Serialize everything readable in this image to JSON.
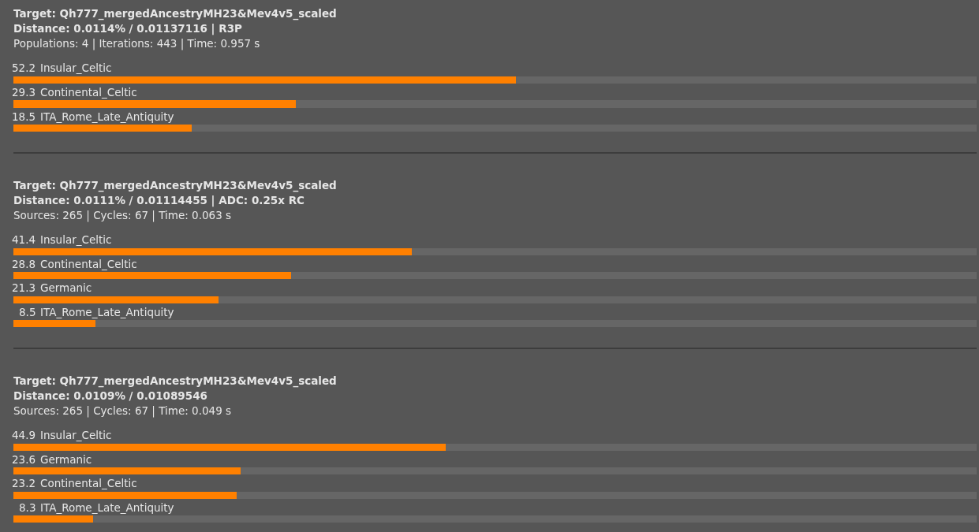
{
  "chart_data": [
    {
      "type": "bar",
      "orientation": "horizontal",
      "stacked": true,
      "title": "Target: Qh777_mergedAncestryMH23&Mev4v5_scaled",
      "subtitle": "Distance: 0.0114% / 0.01137116 | R3P",
      "annotations": [
        "Populations: 4 | Iterations: 443 | Time: 0.957 s"
      ],
      "categories": [
        "Insular_Celtic",
        "Continental_Celtic",
        "ITA_Rome_Late_Antiquity"
      ],
      "series": [
        {
          "color": "#ff8000",
          "values": [
            52.2,
            29.3,
            18.5
          ],
          "value_labels": [
            "52.2",
            "29.3",
            "18.5"
          ]
        },
        {
          "color": "#666666",
          "values": [
            47.8,
            70.7,
            81.5
          ]
        }
      ],
      "xlim": [
        0,
        100
      ],
      "tick_labels": "y"
    },
    {
      "type": "bar",
      "orientation": "horizontal",
      "stacked": true,
      "title": "Target: Qh777_mergedAncestryMH23&Mev4v5_scaled",
      "subtitle": "Distance: 0.0111% / 0.01114455 | ADC: 0.25x RC",
      "annotations": [
        "Sources: 265 | Cycles: 67 | Time: 0.063 s"
      ],
      "categories": [
        "Insular_Celtic",
        "Continental_Celtic",
        "Germanic",
        "ITA_Rome_Late_Antiquity"
      ],
      "series": [
        {
          "color": "#ff8000",
          "values": [
            41.4,
            28.8,
            21.3,
            8.5
          ],
          "value_labels": [
            "41.4",
            "28.8",
            "21.3",
            "8.5"
          ]
        },
        {
          "color": "#666666",
          "values": [
            58.6,
            71.2,
            78.7,
            91.5
          ]
        }
      ],
      "xlim": [
        0,
        100
      ],
      "tick_labels": "y"
    },
    {
      "type": "bar",
      "orientation": "horizontal",
      "stacked": true,
      "title": "Target: Qh777_mergedAncestryMH23&Mev4v5_scaled",
      "subtitle": "Distance: 0.0109% / 0.01089546",
      "annotations": [
        "Sources: 265 | Cycles: 67 | Time: 0.049 s"
      ],
      "categories": [
        "Insular_Celtic",
        "Germanic",
        "Continental_Celtic",
        "ITA_Rome_Late_Antiquity"
      ],
      "series": [
        {
          "color": "#ff8000",
          "values": [
            44.9,
            23.6,
            23.2,
            8.3
          ],
          "value_labels": [
            "44.9",
            "23.6",
            "23.2",
            "8.3"
          ]
        },
        {
          "color": "#666666",
          "values": [
            55.1,
            76.4,
            76.8,
            91.7
          ]
        }
      ],
      "xlim": [
        0,
        100
      ],
      "tick_labels": "y"
    }
  ]
}
